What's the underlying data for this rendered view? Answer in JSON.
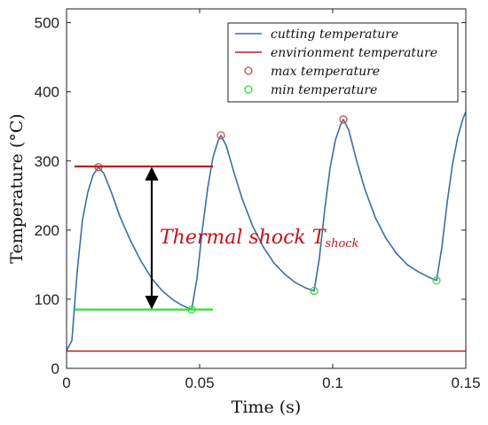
{
  "chart_data": {
    "type": "line",
    "xlabel": "Time (s)",
    "ylabel": "Temperature (°C)",
    "xlim": [
      0,
      0.15
    ],
    "ylim": [
      0,
      520
    ],
    "x_ticks": [
      0,
      0.05,
      0.1,
      0.15
    ],
    "x_tick_labels": [
      "0",
      "0.05",
      "0.1",
      "0.15"
    ],
    "y_ticks": [
      0,
      100,
      200,
      300,
      400,
      500
    ],
    "y_tick_labels": [
      "0",
      "100",
      "200",
      "300",
      "400",
      "500"
    ],
    "grid": false,
    "legend_position": "top-right",
    "series": [
      {
        "name": "cutting temperature",
        "color": "#3a6ea5",
        "style": "line",
        "x": [
          0,
          0.002,
          0.004,
          0.006,
          0.008,
          0.01,
          0.012,
          0.014,
          0.017,
          0.02,
          0.024,
          0.028,
          0.032,
          0.036,
          0.04,
          0.043,
          0.047,
          0.049,
          0.051,
          0.053,
          0.055,
          0.057,
          0.058,
          0.06,
          0.063,
          0.066,
          0.07,
          0.074,
          0.078,
          0.082,
          0.086,
          0.09,
          0.093,
          0.095,
          0.097,
          0.099,
          0.101,
          0.103,
          0.104,
          0.106,
          0.109,
          0.112,
          0.116,
          0.12,
          0.124,
          0.128,
          0.132,
          0.136,
          0.139,
          0.141,
          0.143,
          0.145,
          0.147,
          0.149,
          0.15
        ],
        "y": [
          26,
          40,
          140,
          215,
          255,
          280,
          291,
          282,
          253,
          220,
          185,
          155,
          130,
          112,
          99,
          92,
          85,
          130,
          200,
          260,
          305,
          330,
          337,
          322,
          282,
          245,
          205,
          175,
          152,
          136,
          124,
          116,
          112,
          160,
          230,
          290,
          330,
          353,
          360,
          345,
          300,
          260,
          218,
          188,
          166,
          150,
          140,
          132,
          127,
          175,
          240,
          295,
          335,
          362,
          371
        ]
      },
      {
        "name": "envirionment temperature",
        "color": "#b22222",
        "style": "line",
        "x": [
          0,
          0.15
        ],
        "y": [
          25,
          25
        ]
      },
      {
        "name": "max temperature",
        "color": "#c0504d",
        "style": "circle",
        "x": [
          0.012,
          0.058,
          0.104
        ],
        "y": [
          291,
          337,
          360
        ]
      },
      {
        "name": "min temperature",
        "color": "#33dd33",
        "style": "circle",
        "x": [
          0.047,
          0.093,
          0.139
        ],
        "y": [
          85,
          112,
          127
        ]
      }
    ],
    "reference_lines": [
      {
        "x": [
          0.003,
          0.055
        ],
        "y": [
          292,
          292
        ],
        "color": "#b22222"
      },
      {
        "x": [
          0.003,
          0.055
        ],
        "y": [
          85,
          85
        ],
        "color": "#33dd33"
      }
    ],
    "annotation": {
      "text": "Thermal shock T",
      "subscript": "shock",
      "x": 0.032,
      "y_from": 292,
      "y_to": 85,
      "color": "#c0141c"
    }
  }
}
